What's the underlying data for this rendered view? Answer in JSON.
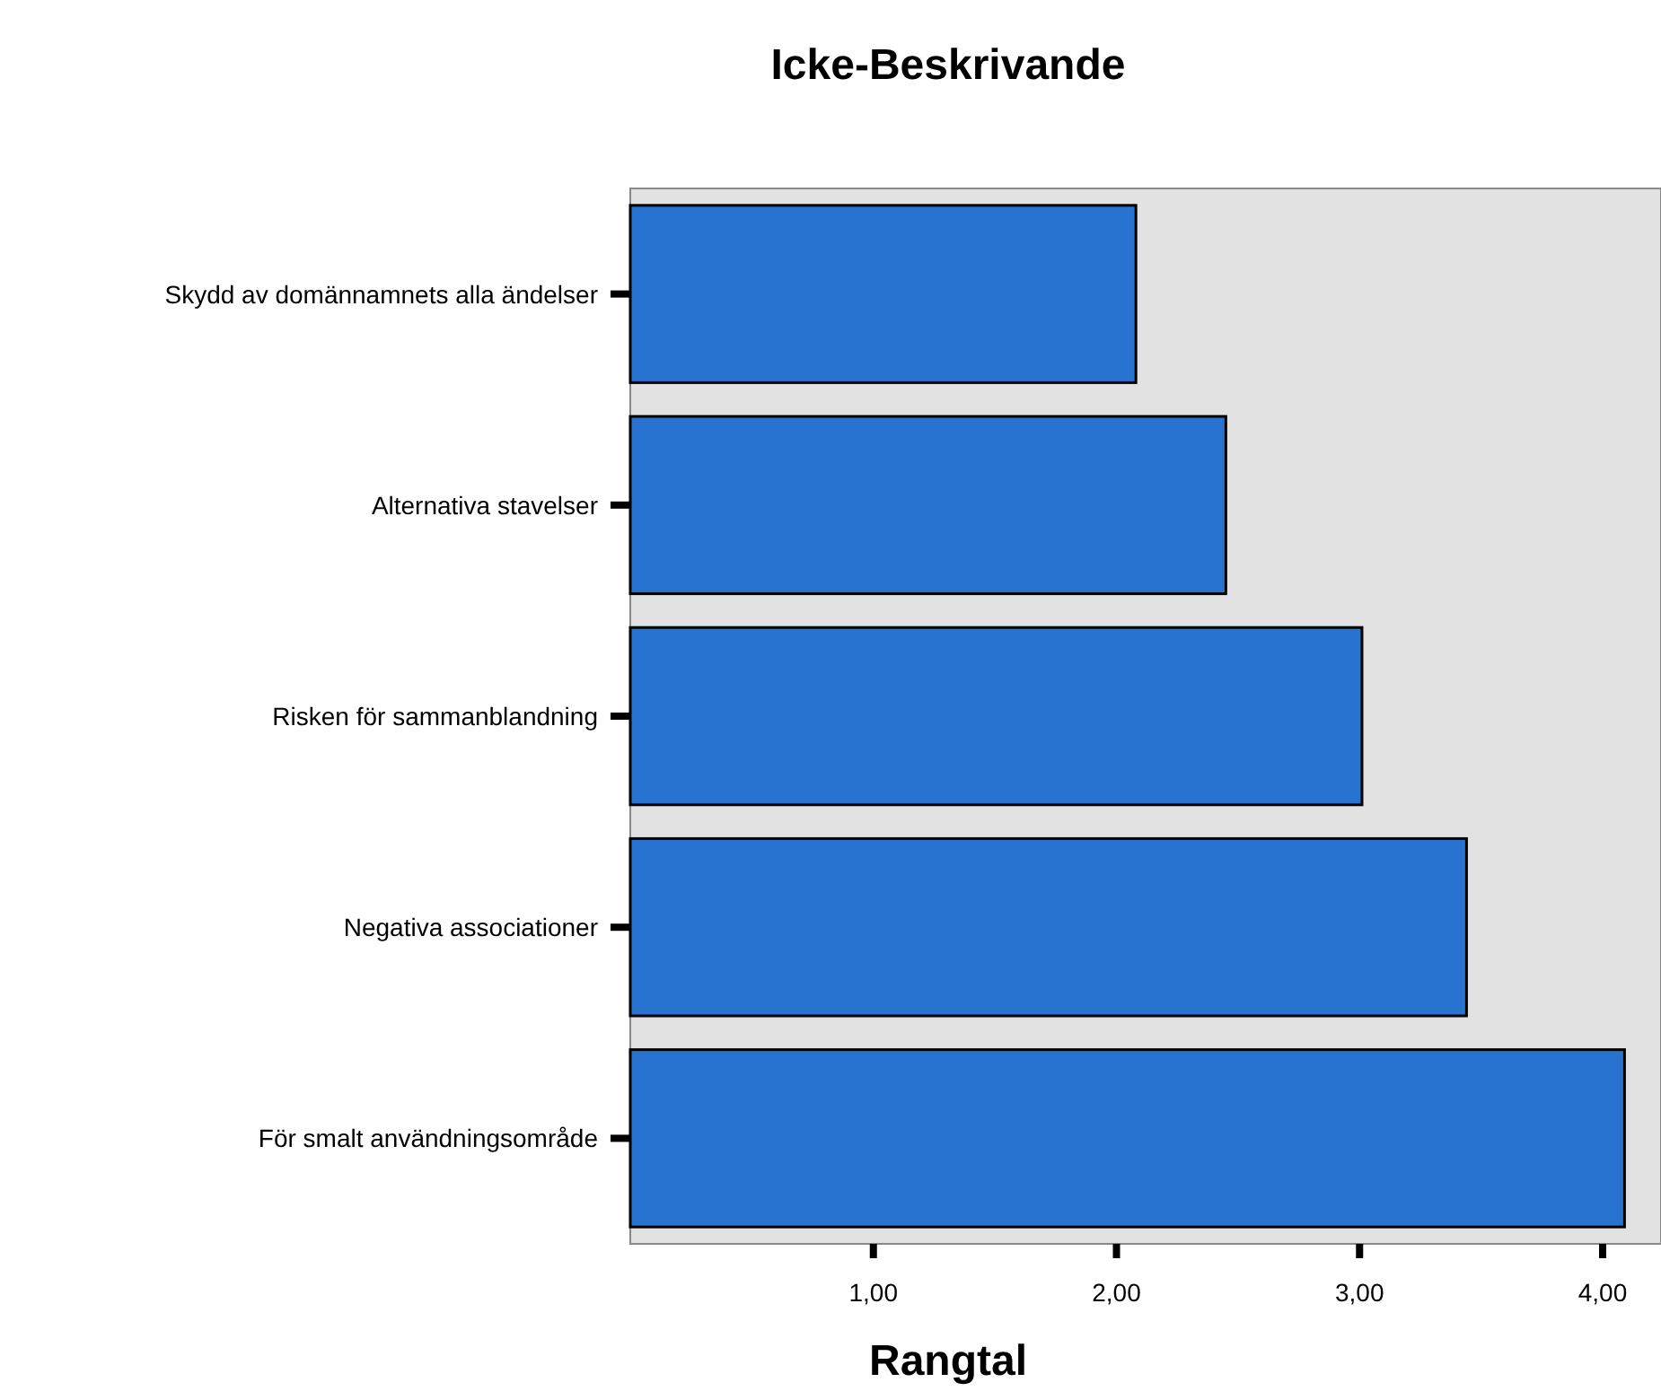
{
  "chart_data": {
    "type": "bar",
    "orientation": "horizontal",
    "title": "Icke-Beskrivande",
    "xlabel": "Rangtal",
    "categories": [
      "Skydd av domännamnets alla ändelser",
      "Alternativa stavelser",
      "Risken för sammanblandning",
      "Negativa associationer",
      "För smalt användningsområde"
    ],
    "values": [
      2.08,
      2.45,
      3.01,
      3.44,
      4.09
    ],
    "color": "#2872d0",
    "xlim": [
      0,
      4.24
    ],
    "xticks": [
      {
        "value": 1,
        "label": "1,00"
      },
      {
        "value": 2,
        "label": "2,00"
      },
      {
        "value": 3,
        "label": "3,00"
      },
      {
        "value": 4,
        "label": "4,00"
      }
    ],
    "grid": false
  }
}
